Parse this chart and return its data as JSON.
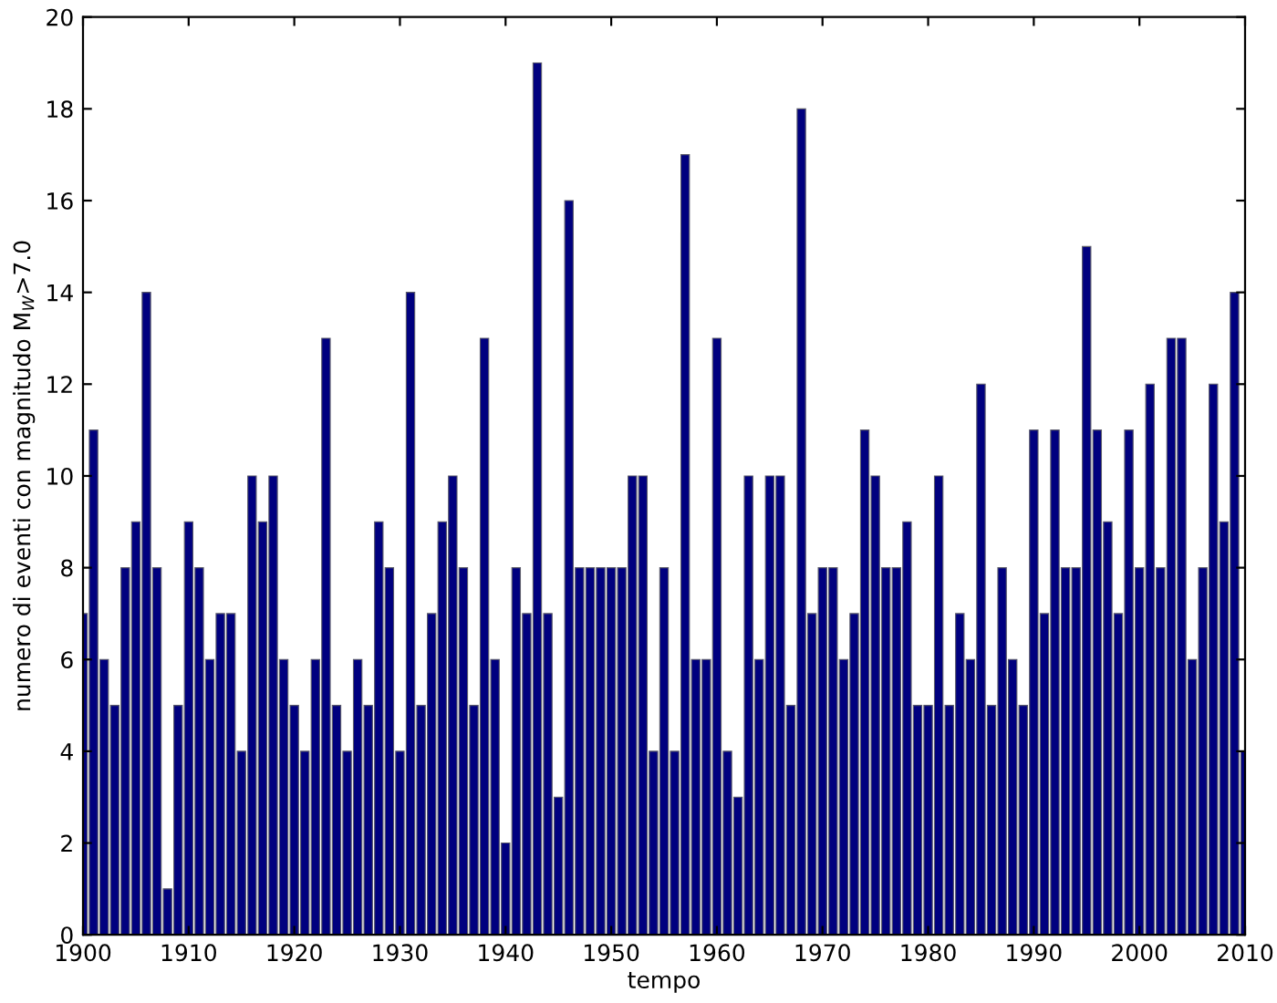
{
  "chart_data": {
    "type": "bar",
    "xlabel": "tempo",
    "ylabel": "numero di eventi con magnitudo M$_{W}$>7.0",
    "x": [
      1900,
      1901,
      1902,
      1903,
      1904,
      1905,
      1906,
      1907,
      1908,
      1909,
      1910,
      1911,
      1912,
      1913,
      1914,
      1915,
      1916,
      1917,
      1918,
      1919,
      1920,
      1921,
      1922,
      1923,
      1924,
      1925,
      1926,
      1927,
      1928,
      1929,
      1930,
      1931,
      1932,
      1933,
      1934,
      1935,
      1936,
      1937,
      1938,
      1939,
      1940,
      1941,
      1942,
      1943,
      1944,
      1945,
      1946,
      1947,
      1948,
      1949,
      1950,
      1951,
      1952,
      1953,
      1954,
      1955,
      1956,
      1957,
      1958,
      1959,
      1960,
      1961,
      1962,
      1963,
      1964,
      1965,
      1966,
      1967,
      1968,
      1969,
      1970,
      1971,
      1972,
      1973,
      1974,
      1975,
      1976,
      1977,
      1978,
      1979,
      1980,
      1981,
      1982,
      1983,
      1984,
      1985,
      1986,
      1987,
      1988,
      1989,
      1990,
      1991,
      1992,
      1993,
      1994,
      1995,
      1996,
      1997,
      1998,
      1999,
      2000,
      2001,
      2002,
      2003,
      2004,
      2005,
      2006,
      2007,
      2008,
      2009,
      2010
    ],
    "values": [
      7,
      11,
      6,
      5,
      8,
      9,
      14,
      8,
      1,
      5,
      9,
      8,
      6,
      7,
      7,
      4,
      10,
      9,
      10,
      6,
      5,
      4,
      6,
      13,
      5,
      4,
      6,
      5,
      9,
      8,
      4,
      14,
      5,
      7,
      9,
      10,
      8,
      5,
      13,
      6,
      2,
      8,
      7,
      19,
      7,
      3,
      16,
      8,
      8,
      8,
      8,
      8,
      10,
      10,
      4,
      8,
      4,
      17,
      6,
      6,
      13,
      4,
      3,
      10,
      6,
      10,
      10,
      5,
      18,
      7,
      8,
      8,
      6,
      7,
      11,
      10,
      8,
      8,
      9,
      5,
      5,
      10,
      5,
      7,
      6,
      12,
      5,
      8,
      6,
      5,
      11,
      7,
      11,
      8,
      8,
      15,
      11,
      9,
      7,
      11,
      8,
      12,
      8,
      13,
      13,
      6,
      8,
      12,
      9,
      14,
      4
    ],
    "color": "#00007f",
    "xlim": [
      1900,
      2010
    ],
    "xticks": [
      1900,
      1910,
      1920,
      1930,
      1940,
      1950,
      1960,
      1970,
      1980,
      1990,
      2000,
      2010
    ],
    "ylim": [
      0,
      20
    ],
    "yticks": [
      0,
      2,
      4,
      6,
      8,
      10,
      12,
      14,
      16,
      18,
      20
    ],
    "grid": false,
    "legend": false
  }
}
